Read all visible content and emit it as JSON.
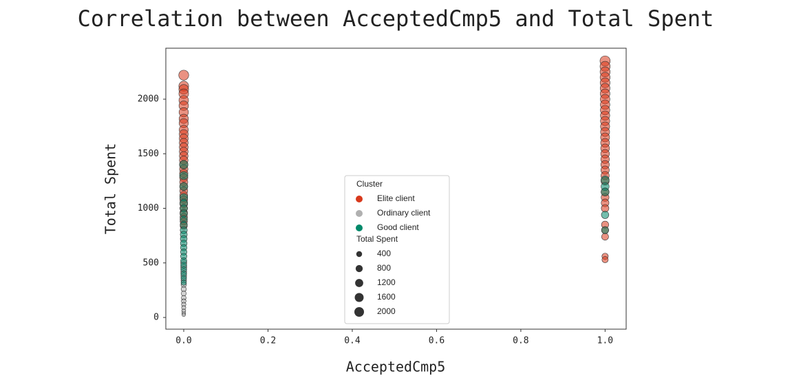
{
  "chart_data": {
    "type": "scatter",
    "title": "Correlation between AcceptedCmp5 and Total Spent",
    "xlabel": "AcceptedCmp5",
    "ylabel": "Total Spent",
    "xlim": [
      -0.0425,
      1.05
    ],
    "ylim": [
      -107,
      2467
    ],
    "xticks": [
      {
        "value": 0,
        "label": "0.0"
      },
      0.2,
      0.4,
      0.6,
      0.8,
      {
        "value": 1,
        "label": "1.0"
      }
    ],
    "yticks": [
      0,
      500,
      1000,
      1500,
      2000
    ],
    "grid": false,
    "legend_title": "Cluster",
    "series": [
      {
        "name": "Elite client",
        "color": "#d8391c",
        "x": [
          0,
          0,
          0,
          0,
          0,
          0,
          0,
          0,
          0,
          0,
          0,
          0,
          0,
          0,
          0,
          0,
          0,
          0,
          0,
          0,
          0,
          0,
          0,
          0,
          0,
          0,
          0,
          0,
          0,
          0,
          0,
          0,
          1,
          1,
          1,
          1,
          1,
          1,
          1,
          1,
          1,
          1,
          1,
          1,
          1,
          1,
          1,
          1,
          1,
          1,
          1,
          1,
          1,
          1,
          1,
          1,
          1,
          1,
          1,
          1,
          1,
          1,
          1,
          1
        ],
        "values": [
          2220,
          2120,
          2090,
          2050,
          1990,
          1940,
          1880,
          1820,
          1780,
          1720,
          1680,
          1640,
          1600,
          1560,
          1520,
          1480,
          1440,
          1400,
          1360,
          1320,
          1280,
          1240,
          1200,
          1160,
          1120,
          1080,
          1040,
          1000,
          960,
          920,
          880,
          840,
          2350,
          2300,
          2250,
          2200,
          2150,
          2100,
          2050,
          2000,
          1950,
          1900,
          1850,
          1800,
          1750,
          1700,
          1650,
          1600,
          1550,
          1500,
          1450,
          1400,
          1350,
          1300,
          1250,
          1150,
          1100,
          1050,
          1000,
          850,
          800,
          740,
          560,
          530
        ]
      },
      {
        "name": "Ordinary client",
        "color": "#b0b0b0",
        "x": [
          0,
          0,
          0,
          0,
          0,
          0,
          0,
          0,
          0,
          0,
          0,
          0,
          0,
          0,
          0
        ],
        "values": [
          500,
          460,
          420,
          380,
          340,
          300,
          260,
          220,
          180,
          150,
          120,
          90,
          60,
          40,
          25
        ]
      },
      {
        "name": "Good client",
        "color": "#00896a",
        "x": [
          0,
          0,
          0,
          0,
          0,
          0,
          0,
          0,
          0,
          0,
          0,
          0,
          0,
          0,
          0,
          0,
          0,
          0,
          0,
          0,
          0,
          0,
          1,
          1,
          1,
          1,
          1
        ],
        "values": [
          1400,
          1300,
          1200,
          1100,
          1050,
          1000,
          950,
          900,
          850,
          800,
          760,
          720,
          680,
          640,
          600,
          560,
          520,
          480,
          440,
          400,
          360,
          320,
          1260,
          1200,
          1150,
          940,
          800
        ]
      }
    ],
    "size_legend": {
      "title": "Total Spent",
      "values": [
        400,
        800,
        1200,
        1600,
        2000
      ]
    }
  }
}
